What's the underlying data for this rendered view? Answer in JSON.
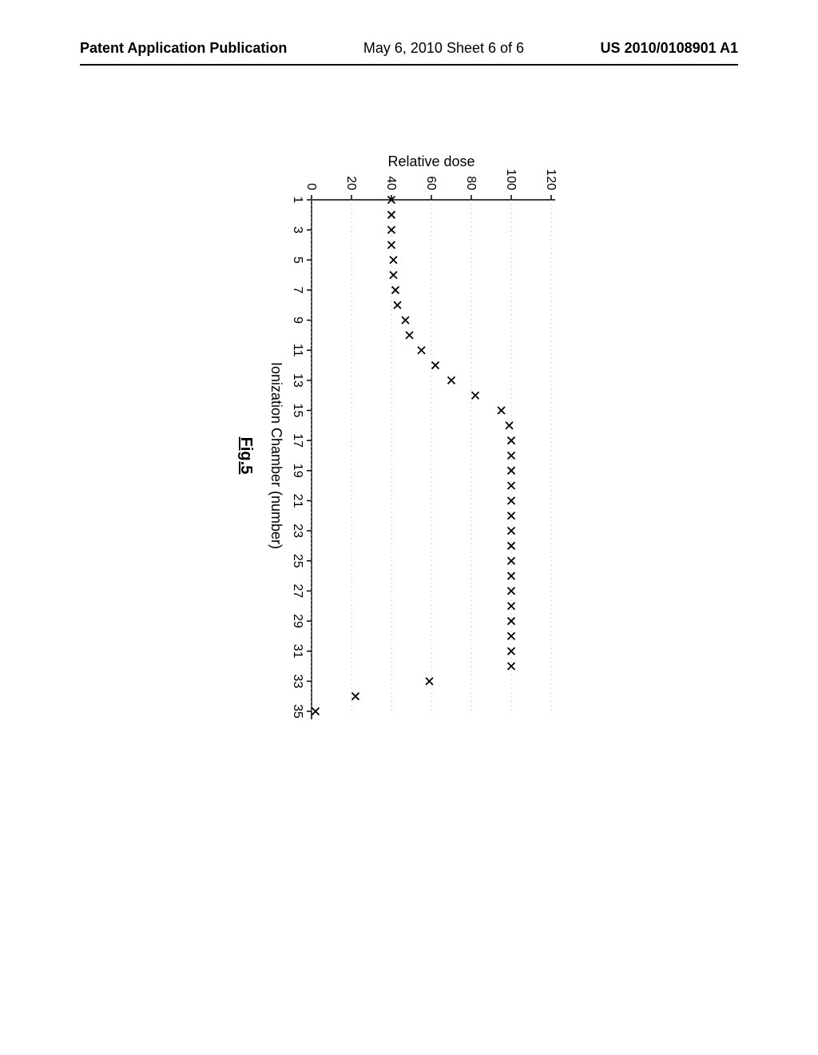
{
  "header": {
    "left": "Patent Application Publication",
    "center": "May 6, 2010  Sheet 6 of 6",
    "right": "US 2010/0108901 A1"
  },
  "chart": {
    "type": "scatter",
    "orientation": "rotated-90",
    "xlabel": "Ionization Chamber (number)",
    "ylabel": "Relative dose",
    "figure_label": "Fig.5",
    "xlim": [
      1,
      35
    ],
    "ylim": [
      0,
      120
    ],
    "xtick_step": 2,
    "xtick_start": 1,
    "ytick_step": 20,
    "ytick_start": 0,
    "xticks": [
      1,
      3,
      5,
      7,
      9,
      11,
      13,
      15,
      17,
      19,
      21,
      23,
      25,
      27,
      29,
      31,
      33,
      35
    ],
    "yticks": [
      0,
      20,
      40,
      60,
      80,
      100,
      120
    ],
    "marker_style": "x",
    "marker_color": "#000000",
    "marker_size": 10,
    "background_color": "#ffffff",
    "axis_color": "#000000",
    "grid": true,
    "grid_color": "#aaaaaa",
    "grid_style": "dotted",
    "label_fontsize": 18,
    "tick_fontsize": 16,
    "data": [
      {
        "x": 1,
        "y": 40
      },
      {
        "x": 2,
        "y": 40
      },
      {
        "x": 3,
        "y": 40
      },
      {
        "x": 4,
        "y": 40
      },
      {
        "x": 5,
        "y": 41
      },
      {
        "x": 6,
        "y": 41
      },
      {
        "x": 7,
        "y": 42
      },
      {
        "x": 8,
        "y": 43
      },
      {
        "x": 9,
        "y": 47
      },
      {
        "x": 10,
        "y": 49
      },
      {
        "x": 11,
        "y": 55
      },
      {
        "x": 12,
        "y": 62
      },
      {
        "x": 13,
        "y": 70
      },
      {
        "x": 14,
        "y": 82
      },
      {
        "x": 15,
        "y": 95
      },
      {
        "x": 16,
        "y": 99
      },
      {
        "x": 17,
        "y": 100
      },
      {
        "x": 18,
        "y": 100
      },
      {
        "x": 19,
        "y": 100
      },
      {
        "x": 20,
        "y": 100
      },
      {
        "x": 21,
        "y": 100
      },
      {
        "x": 22,
        "y": 100
      },
      {
        "x": 23,
        "y": 100
      },
      {
        "x": 24,
        "y": 100
      },
      {
        "x": 25,
        "y": 100
      },
      {
        "x": 26,
        "y": 100
      },
      {
        "x": 27,
        "y": 100
      },
      {
        "x": 28,
        "y": 100
      },
      {
        "x": 29,
        "y": 100
      },
      {
        "x": 30,
        "y": 100
      },
      {
        "x": 31,
        "y": 100
      },
      {
        "x": 32,
        "y": 100
      },
      {
        "x": 33,
        "y": 59
      },
      {
        "x": 34,
        "y": 22
      },
      {
        "x": 35,
        "y": 2
      }
    ]
  }
}
